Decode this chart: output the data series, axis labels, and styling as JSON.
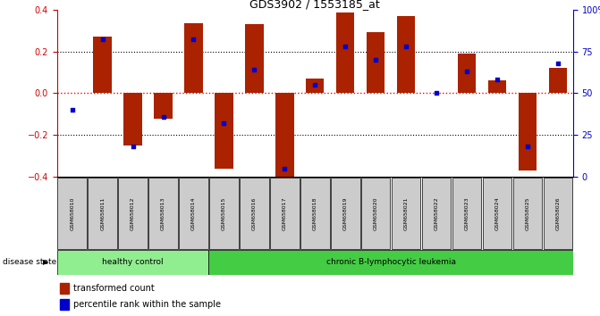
{
  "title": "GDS3902 / 1553185_at",
  "samples": [
    "GSM658010",
    "GSM658011",
    "GSM658012",
    "GSM658013",
    "GSM658014",
    "GSM658015",
    "GSM658016",
    "GSM658017",
    "GSM658018",
    "GSM658019",
    "GSM658020",
    "GSM658021",
    "GSM658022",
    "GSM658023",
    "GSM658024",
    "GSM658025",
    "GSM658026"
  ],
  "red_values": [
    0.0,
    0.27,
    -0.25,
    -0.12,
    0.335,
    -0.36,
    0.33,
    -0.42,
    0.07,
    0.385,
    0.29,
    0.37,
    0.0,
    0.19,
    0.06,
    -0.37,
    0.12
  ],
  "blue_values_pct": [
    40,
    82,
    18,
    36,
    82,
    32,
    64,
    5,
    55,
    78,
    70,
    78,
    50,
    63,
    58,
    18,
    68
  ],
  "healthy_control_count": 5,
  "ylim": [
    -0.4,
    0.4
  ],
  "y2lim": [
    0,
    100
  ],
  "bar_color": "#AA2200",
  "dot_color": "#0000CC",
  "red_axis_color": "#CC0000",
  "blue_axis_color": "#0000CC",
  "healthy_bg": "#90EE90",
  "leukemia_bg": "#44CC44",
  "sample_bg": "#CCCCCC",
  "legend_red_label": "transformed count",
  "legend_blue_label": "percentile rank within the sample",
  "disease_state_label": "disease state",
  "healthy_label": "healthy control",
  "leukemia_label": "chronic B-lymphocytic leukemia"
}
